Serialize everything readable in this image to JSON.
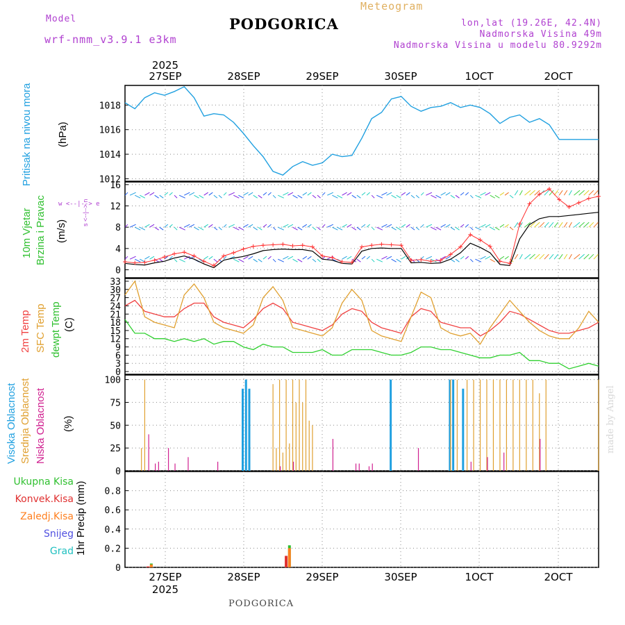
{
  "header": {
    "model_label": "Model",
    "model_name": "wrf-nmm_v3.9.1 e3km",
    "title": "PODGORICA",
    "subtitle": "Meteogram",
    "coords": "lon,lat (19.26E, 42.4N)",
    "altitude": "Nadmorska Visina 49m",
    "model_altitude": "Nadmorska Visina u modelu 80.9292m"
  },
  "footer": {
    "station": "PODGORICA",
    "credit": "made by Angel"
  },
  "year_label": "2025",
  "date_labels": [
    "27SEP",
    "28SEP",
    "29SEP",
    "30SEP",
    "1OCT",
    "2OCT"
  ],
  "panels": {
    "pressure": {
      "label": "Pritisak na nivou mora",
      "unit": "(hPa)",
      "color": "#20a0e0"
    },
    "wind": {
      "label1": "10m Vjetar",
      "label2": "Brzina i Pravac",
      "unit": "(m/s)",
      "compass": "w <--|--> e",
      "compass_v": "s <--|--> n"
    },
    "temp": {
      "label_t2m": "2m Temp",
      "label_sfc": "SFC Temp",
      "label_dew": "dewpt Temp",
      "unit": "(C)"
    },
    "cloud": {
      "label_high": "Visoka Oblacnost",
      "label_mid": "Srednja Oblacnost",
      "label_low": "Niska Oblacnost",
      "unit": "(%)"
    },
    "precip": {
      "legend": [
        "Ukupna Kisa",
        "Konvek.Kisa",
        "Zaledj.Kisa",
        "Snijeg",
        "Grad"
      ],
      "unit": "1hr Precip (mm)"
    }
  },
  "chart_data": [
    {
      "type": "line",
      "title": "Pritisak na nivou mora",
      "ylabel": "hPa",
      "ylim": [
        1011.8,
        1019.6
      ],
      "yticks": [
        1012,
        1014,
        1016,
        1018
      ],
      "x": [
        0,
        3,
        6,
        9,
        12,
        15,
        18,
        21,
        24,
        27,
        30,
        33,
        36,
        39,
        42,
        45,
        48,
        51,
        54,
        57,
        60,
        63,
        66,
        69,
        72,
        75,
        78,
        81,
        84,
        87,
        90,
        93,
        96,
        99,
        102,
        105,
        108,
        111,
        114,
        117,
        120,
        123,
        126,
        129,
        132,
        135,
        138,
        141,
        144
      ],
      "values": [
        1018.2,
        1017.7,
        1018.6,
        1019.0,
        1018.8,
        1019.1,
        1019.5,
        1018.6,
        1017.1,
        1017.3,
        1017.2,
        1016.6,
        1015.7,
        1014.7,
        1013.8,
        1012.6,
        1012.3,
        1013.0,
        1013.4,
        1013.1,
        1013.3,
        1014.0,
        1013.8,
        1013.9,
        1015.3,
        1016.9,
        1017.4,
        1018.5,
        1018.7,
        1017.9,
        1017.5,
        1017.8,
        1017.9,
        1018.2,
        1017.8,
        1018.0,
        1017.8,
        1017.3,
        1016.5,
        1017.0,
        1017.2,
        1016.6,
        1016.9,
        1016.4,
        1015.2,
        1015.2,
        1015.2,
        1015.2,
        1015.2
      ],
      "series_color": "#20a0e0"
    },
    {
      "type": "line",
      "title": "10m Vjetar Brzina i Pravac",
      "ylabel": "m/s",
      "ylim": [
        -1.5,
        16.5
      ],
      "yticks": [
        0,
        4,
        8,
        12,
        16
      ],
      "x": [
        0,
        3,
        6,
        9,
        12,
        15,
        18,
        21,
        24,
        27,
        30,
        33,
        36,
        39,
        42,
        45,
        48,
        51,
        54,
        57,
        60,
        63,
        66,
        69,
        72,
        75,
        78,
        81,
        84,
        87,
        90,
        93,
        96,
        99,
        102,
        105,
        108,
        111,
        114,
        117,
        120,
        123,
        126,
        129,
        132,
        135,
        138,
        141,
        144
      ],
      "series": [
        {
          "name": "wind speed",
          "color": "#000000",
          "values": [
            1.2,
            1.0,
            0.9,
            1.3,
            1.6,
            2.2,
            2.6,
            2.0,
            1.1,
            0.4,
            1.8,
            2.2,
            2.5,
            3.0,
            3.6,
            3.8,
            3.9,
            3.8,
            3.8,
            3.5,
            2.0,
            1.8,
            1.2,
            1.1,
            3.5,
            4.0,
            4.1,
            4.0,
            4.0,
            1.3,
            1.4,
            1.2,
            1.3,
            2.0,
            3.2,
            5.0,
            4.2,
            3.2,
            1.0,
            0.8,
            5.8,
            8.5,
            9.6,
            10.0,
            10.0,
            10.2,
            10.4,
            10.6,
            10.8
          ]
        },
        {
          "name": "wind gust",
          "color": "#ff3030",
          "values": [
            1.5,
            1.3,
            1.4,
            1.8,
            2.4,
            3.0,
            3.3,
            2.6,
            1.6,
            0.8,
            2.6,
            3.2,
            3.9,
            4.4,
            4.6,
            4.7,
            4.8,
            4.5,
            4.6,
            4.3,
            2.6,
            2.3,
            1.5,
            1.4,
            4.3,
            4.6,
            4.8,
            4.7,
            4.6,
            1.8,
            1.9,
            1.6,
            1.8,
            2.9,
            4.3,
            6.6,
            5.6,
            4.4,
            1.6,
            1.2,
            8.6,
            12.4,
            14.2,
            15.2,
            13.2,
            11.8,
            12.6,
            13.4,
            13.8
          ]
        }
      ],
      "barb_levels": [
        2,
        8,
        14
      ]
    },
    {
      "type": "line",
      "title": "Temperature",
      "ylabel": "C",
      "ylim": [
        -1,
        34
      ],
      "yticks": [
        0,
        3,
        6,
        9,
        12,
        15,
        18,
        21,
        24,
        27,
        30,
        33
      ],
      "x": [
        0,
        3,
        6,
        9,
        12,
        15,
        18,
        21,
        24,
        27,
        30,
        33,
        36,
        39,
        42,
        45,
        48,
        51,
        54,
        57,
        60,
        63,
        66,
        69,
        72,
        75,
        78,
        81,
        84,
        87,
        90,
        93,
        96,
        99,
        102,
        105,
        108,
        111,
        114,
        117,
        120,
        123,
        126,
        129,
        132,
        135,
        138,
        141,
        144
      ],
      "series": [
        {
          "name": "2m Temp",
          "color": "#f04040",
          "values": [
            24,
            26,
            22,
            21,
            20,
            20,
            23,
            25,
            25,
            20,
            18,
            17,
            16,
            19,
            23,
            25,
            23,
            18,
            17,
            16,
            15,
            17,
            21,
            23,
            22,
            18,
            16,
            15,
            14,
            20,
            23,
            22,
            18,
            17,
            16,
            16,
            13,
            15,
            18,
            22,
            21,
            19,
            17,
            15,
            14,
            14,
            15,
            16,
            18
          ]
        },
        {
          "name": "SFC Temp",
          "color": "#e0a030",
          "values": [
            28,
            33,
            20,
            18,
            17,
            16,
            28,
            32,
            27,
            18,
            16,
            15,
            14,
            17,
            27,
            31,
            26,
            16,
            15,
            14,
            13,
            16,
            25,
            30,
            26,
            15,
            13,
            12,
            11,
            20,
            29,
            27,
            16,
            14,
            13,
            14,
            10,
            16,
            21,
            26,
            22,
            18,
            15,
            13,
            12,
            12,
            16,
            22,
            18
          ]
        },
        {
          "name": "dewpt Temp",
          "color": "#30d030",
          "values": [
            19,
            14,
            14,
            12,
            12,
            11,
            12,
            11,
            12,
            10,
            11,
            11,
            9,
            8,
            10,
            9,
            9,
            7,
            7,
            7,
            8,
            6,
            6,
            8,
            8,
            8,
            7,
            6,
            6,
            7,
            9,
            9,
            8,
            8,
            7,
            6,
            5,
            5,
            6,
            6,
            7,
            4,
            4,
            3,
            3,
            1,
            2,
            3,
            2
          ]
        }
      ]
    },
    {
      "type": "bar",
      "title": "Oblacnost",
      "ylabel": "%",
      "ylim": [
        0,
        105
      ],
      "yticks": [
        0,
        25,
        50,
        75,
        100
      ],
      "series": [
        {
          "name": "Visoka Oblacnost",
          "color": "#20a0e0",
          "values": [
            [
              36,
              90
            ],
            [
              37,
              100
            ],
            [
              38,
              90
            ],
            [
              81,
              100
            ],
            [
              99,
              100
            ],
            [
              100,
              100
            ],
            [
              103,
              90
            ]
          ]
        },
        {
          "name": "Srednja Oblacnost",
          "color": "#e0a030",
          "values": [
            [
              5,
              25
            ],
            [
              6,
              100
            ],
            [
              45,
              95
            ],
            [
              46,
              25
            ],
            [
              47,
              100
            ],
            [
              48,
              20
            ],
            [
              49,
              100
            ],
            [
              50,
              30
            ],
            [
              51,
              100
            ],
            [
              52,
              75
            ],
            [
              53,
              100
            ],
            [
              54,
              75
            ],
            [
              55,
              100
            ],
            [
              56,
              55
            ],
            [
              57,
              50
            ],
            [
              99,
              100
            ],
            [
              101,
              100
            ],
            [
              104,
              100
            ],
            [
              106,
              100
            ],
            [
              108,
              100
            ],
            [
              110,
              100
            ],
            [
              112,
              100
            ],
            [
              114,
              100
            ],
            [
              116,
              100
            ],
            [
              118,
              100
            ],
            [
              120,
              100
            ],
            [
              122,
              100
            ],
            [
              124,
              100
            ],
            [
              126,
              85
            ],
            [
              128,
              100
            ],
            [
              144,
              100
            ]
          ]
        },
        {
          "name": "Niska Oblacnost",
          "color": "#d02090",
          "values": [
            [
              7,
              40
            ],
            [
              9,
              8
            ],
            [
              10,
              10
            ],
            [
              13,
              25
            ],
            [
              15,
              8
            ],
            [
              19,
              15
            ],
            [
              28,
              10
            ],
            [
              47,
              5
            ],
            [
              51,
              10
            ],
            [
              63,
              35
            ],
            [
              70,
              8
            ],
            [
              71,
              8
            ],
            [
              74,
              5
            ],
            [
              75,
              8
            ],
            [
              89,
              25
            ],
            [
              105,
              10
            ],
            [
              110,
              15
            ],
            [
              115,
              20
            ],
            [
              126,
              35
            ]
          ]
        }
      ]
    },
    {
      "type": "bar",
      "title": "1hr Precip",
      "ylabel": "mm",
      "ylim": [
        0,
        1.0
      ],
      "yticks": [
        0,
        0.2,
        0.4,
        0.6,
        0.8
      ],
      "series": [
        {
          "name": "Ukupna Kisa",
          "color": "#30c030",
          "values": [
            [
              8,
              0.04
            ],
            [
              50,
              0.23
            ]
          ]
        },
        {
          "name": "Konvek.Kisa",
          "color": "#e03030",
          "values": [
            [
              7,
              0.01
            ],
            [
              49,
              0.12
            ]
          ]
        },
        {
          "name": "Zaledj.Kisa",
          "color": "#ff8020",
          "values": [
            [
              8,
              0.03
            ],
            [
              50,
              0.2
            ]
          ]
        },
        {
          "name": "Snijeg",
          "color": "#5050e0",
          "values": []
        },
        {
          "name": "Grad",
          "color": "#20c0c0",
          "values": []
        }
      ]
    }
  ]
}
